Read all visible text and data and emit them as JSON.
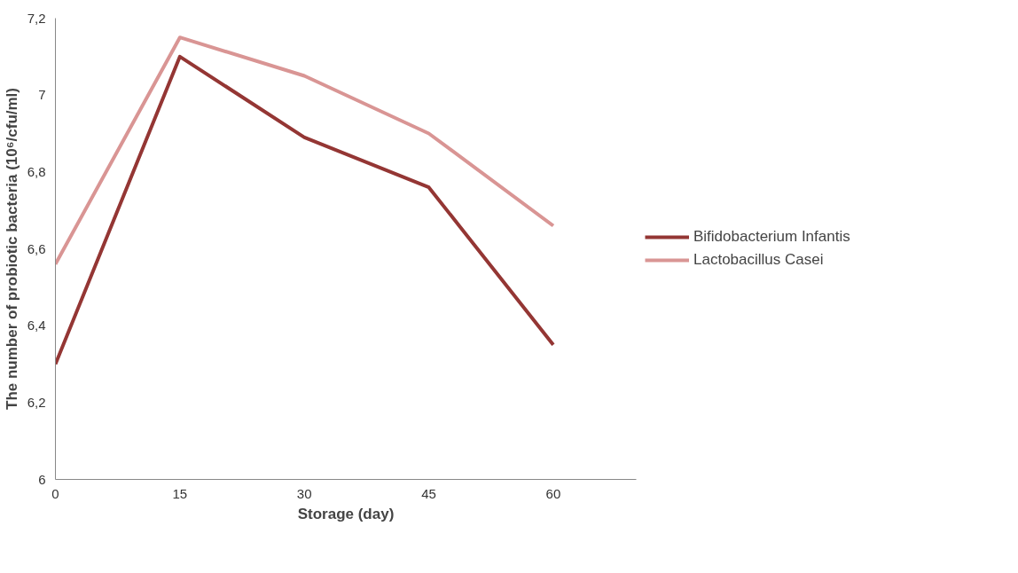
{
  "chart_data": {
    "type": "line",
    "xlabel": "Storage (day)",
    "ylabel": "The number of probiotic bacteria (10⁶/cfu/ml)",
    "x": [
      0,
      15,
      30,
      45,
      60
    ],
    "series": [
      {
        "name": "Bifidobacterium Infantis",
        "color": "#943634",
        "values": [
          6.3,
          7.1,
          6.89,
          6.76,
          6.35
        ]
      },
      {
        "name": "Lactobacillus Casei",
        "color": "#d99594",
        "values": [
          6.56,
          7.15,
          7.05,
          6.9,
          6.66
        ]
      }
    ],
    "xlim": [
      0,
      70
    ],
    "xticks": [
      0,
      15,
      30,
      45,
      60
    ],
    "ylim": [
      6,
      7.2
    ],
    "yticks": [
      6,
      {
        "value": 6.2,
        "label": "6,2"
      },
      {
        "value": 6.4,
        "label": "6,4"
      },
      {
        "value": 6.6,
        "label": "6,6"
      },
      {
        "value": 6.8,
        "label": "6,8"
      },
      7,
      {
        "value": 7.2,
        "label": "7,2"
      }
    ],
    "grid": false,
    "legend": "right",
    "marker": "none",
    "line_style": "solid"
  }
}
